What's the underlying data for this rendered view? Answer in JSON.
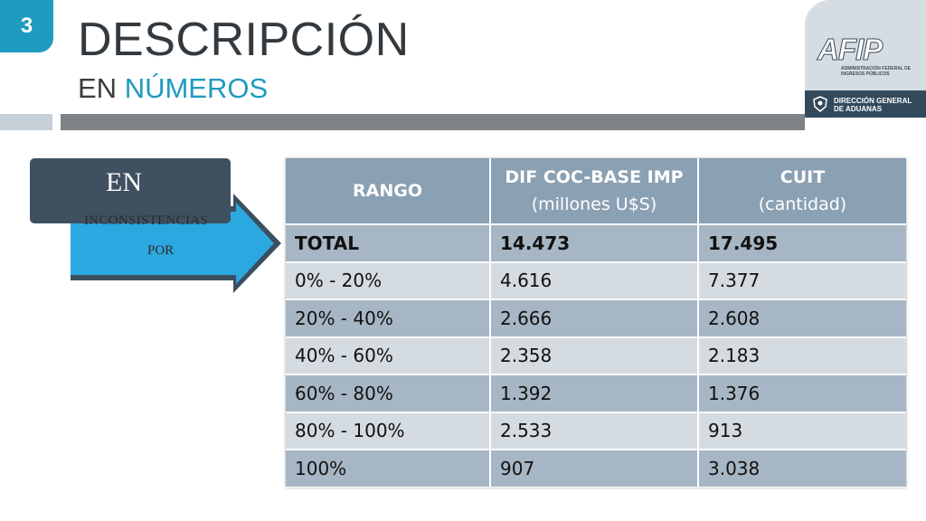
{
  "slide_number": "3",
  "title": "DESCRIPCIÓN",
  "subtitle_prefix": "EN",
  "subtitle_accent": "NÚMEROS",
  "logo": {
    "brand": "AFIP",
    "brand_sub": "ADMINISTRACIÓN FEDERAL DE INGRESOS PÚBLICOS",
    "division": "DIRECCIÓN GENERAL DE ADUANAS"
  },
  "label_box": {
    "text": "EN"
  },
  "arrow": {
    "line1": "INCONSISTENCIAS",
    "line2": "POR"
  },
  "table": {
    "headers": [
      {
        "main": "RANGO",
        "sub": ""
      },
      {
        "main": "DIF COC-BASE IMP",
        "sub": "(millones U$S)"
      },
      {
        "main": "CUIT",
        "sub": "(cantidad)"
      }
    ],
    "rows": [
      [
        "TOTAL",
        "14.473",
        "17.495"
      ],
      [
        "0% - 20%",
        "4.616",
        "7.377"
      ],
      [
        "20% - 40%",
        "2.666",
        "2.608"
      ],
      [
        "40% - 60%",
        "2.358",
        "2.183"
      ],
      [
        "60% - 80%",
        "1.392",
        "1.376"
      ],
      [
        "80% - 100%",
        "2.533",
        "913"
      ],
      [
        "100%",
        "907",
        "3.038"
      ]
    ]
  },
  "colors": {
    "accent": "#1f9ac0",
    "header_fill": "#8aa0b3",
    "row_dark": "#a7b6c4",
    "row_light": "#d4dbe1",
    "label_box": "#3f5060"
  }
}
